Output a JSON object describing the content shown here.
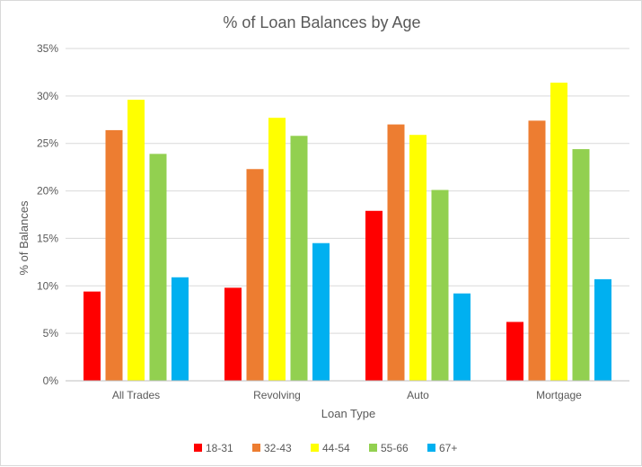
{
  "chart_data": {
    "type": "bar",
    "title": "% of Loan Balances by Age",
    "xlabel": "Loan Type",
    "ylabel": "% of Balances",
    "categories": [
      "All Trades",
      "Revolving",
      "Auto",
      "Mortgage"
    ],
    "ylim": [
      0,
      35
    ],
    "yticks": [
      0,
      5,
      10,
      15,
      20,
      25,
      30,
      35
    ],
    "ytick_labels": [
      "0%",
      "5%",
      "10%",
      "15%",
      "20%",
      "25%",
      "30%",
      "35%"
    ],
    "grid": true,
    "legend_position": "bottom",
    "series": [
      {
        "name": "18-31",
        "color": "#ff0000",
        "values": [
          9.4,
          9.8,
          17.9,
          6.2
        ]
      },
      {
        "name": "32-43",
        "color": "#ed7d31",
        "values": [
          26.4,
          22.3,
          27.0,
          27.4
        ]
      },
      {
        "name": "44-54",
        "color": "#ffff00",
        "values": [
          29.6,
          27.7,
          25.9,
          31.4
        ]
      },
      {
        "name": "55-66",
        "color": "#92d050",
        "values": [
          23.9,
          25.8,
          20.1,
          24.4
        ]
      },
      {
        "name": "67+",
        "color": "#00b0f0",
        "values": [
          10.9,
          14.5,
          9.2,
          10.7
        ]
      }
    ]
  }
}
